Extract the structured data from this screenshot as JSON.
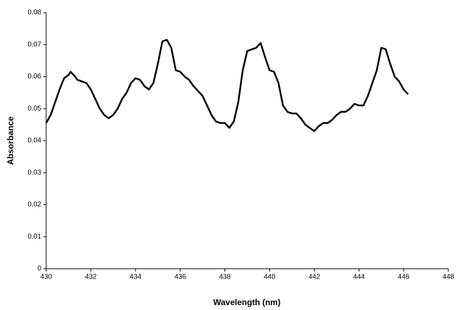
{
  "chart_data": {
    "type": "line",
    "xlabel": "Wavelength (nm)",
    "ylabel": "Absorbance",
    "x": [
      430.0,
      430.2,
      430.4,
      430.6,
      430.8,
      431.0,
      431.1,
      431.3,
      431.4,
      431.8,
      432.0,
      432.2,
      432.4,
      432.6,
      432.8,
      433.0,
      433.2,
      433.4,
      433.6,
      433.8,
      434.0,
      434.2,
      434.4,
      434.6,
      434.8,
      435.0,
      435.2,
      435.4,
      435.6,
      435.8,
      436.0,
      436.2,
      436.4,
      436.6,
      436.8,
      437.0,
      437.2,
      437.4,
      437.6,
      437.8,
      438.0,
      438.2,
      438.4,
      438.6,
      438.8,
      439.0,
      439.2,
      439.4,
      439.6,
      439.8,
      440.0,
      440.2,
      440.4,
      440.6,
      440.8,
      441.0,
      441.2,
      441.4,
      441.6,
      441.8,
      442.0,
      442.2,
      442.4,
      442.6,
      442.8,
      443.0,
      443.2,
      443.4,
      443.6,
      443.8,
      444.0,
      444.2,
      444.4,
      444.6,
      444.8,
      445.0,
      445.2,
      445.4,
      445.6,
      445.8,
      446.0,
      446.2
    ],
    "series": [
      {
        "color": "#000000",
        "values": [
          0.0455,
          0.048,
          0.052,
          0.056,
          0.0595,
          0.0605,
          0.0615,
          0.06,
          0.059,
          0.058,
          0.056,
          0.053,
          0.05,
          0.048,
          0.047,
          0.048,
          0.05,
          0.053,
          0.055,
          0.058,
          0.0595,
          0.059,
          0.057,
          0.056,
          0.058,
          0.064,
          0.071,
          0.0715,
          0.069,
          0.062,
          0.0615,
          0.06,
          0.059,
          0.057,
          0.0555,
          0.054,
          0.051,
          0.048,
          0.046,
          0.0455,
          0.0455,
          0.044,
          0.046,
          0.052,
          0.062,
          0.068,
          0.0685,
          0.069,
          0.0705,
          0.066,
          0.062,
          0.0615,
          0.058,
          0.051,
          0.049,
          0.0485,
          0.0485,
          0.047,
          0.045,
          0.044,
          0.043,
          0.0445,
          0.0455,
          0.0455,
          0.0465,
          0.048,
          0.049,
          0.049,
          0.05,
          0.0515,
          0.051,
          0.051,
          0.054,
          0.058,
          0.062,
          0.069,
          0.0685,
          0.064,
          0.06,
          0.0585,
          0.056,
          0.0545
        ]
      }
    ],
    "xlim": [
      430,
      448
    ],
    "xticks": [
      430,
      432,
      434,
      436,
      438,
      440,
      442,
      444,
      446,
      448
    ],
    "ylim": [
      0,
      0.08
    ],
    "yticks": [
      0,
      0.01,
      0.02,
      0.03,
      0.04,
      0.05,
      0.06,
      0.07,
      0.08
    ]
  }
}
